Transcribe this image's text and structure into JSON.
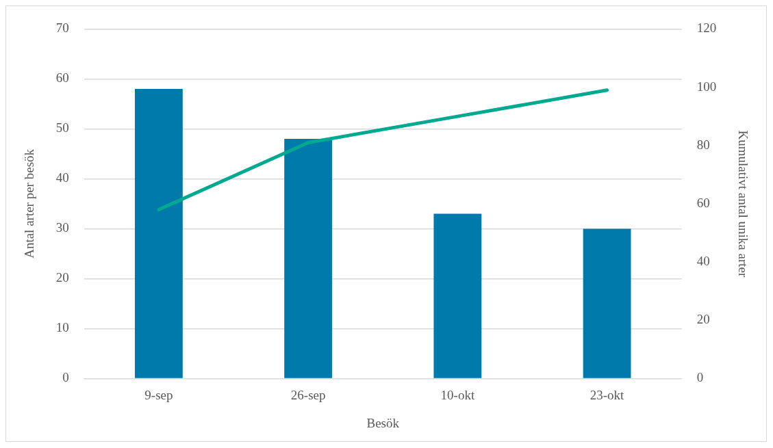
{
  "chart_data": {
    "type": "bar",
    "categories": [
      "9-sep",
      "26-sep",
      "10-okt",
      "23-okt"
    ],
    "series": [
      {
        "color": "#0079ab",
        "values": [
          58,
          48,
          33,
          30
        ]
      },
      {
        "type": "line",
        "axis": "y2",
        "color": "#00a98f",
        "values": [
          58,
          81,
          90,
          99
        ],
        "marker": "none"
      }
    ],
    "xlabel": "Besök",
    "ylabel": "Antal arter per besök",
    "y2label": "Kumulativt antal unika arter",
    "ylim": [
      0,
      70
    ],
    "yticks": [
      0,
      10,
      20,
      30,
      40,
      50,
      60,
      70
    ],
    "y2lim": [
      0,
      120
    ],
    "y2ticks": [
      0,
      20,
      40,
      60,
      80,
      100,
      120
    ],
    "grid": "y",
    "legend": false
  }
}
